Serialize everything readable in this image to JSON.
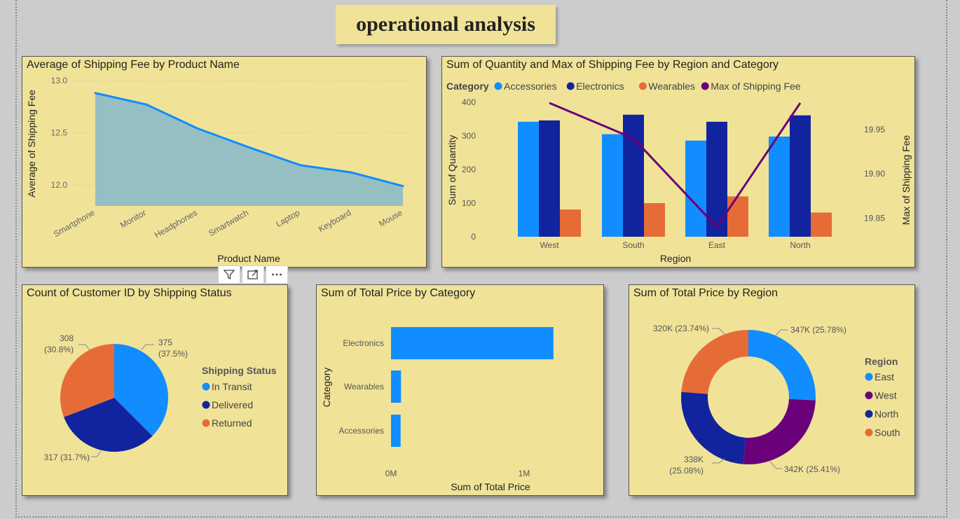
{
  "page": {
    "title": "operational analysis"
  },
  "toolbar": {
    "icons": [
      "filter-icon",
      "focus-mode-icon",
      "more-options-icon"
    ]
  },
  "colors": {
    "east": "#118dff",
    "west": "#6b007b",
    "north": "#12239e",
    "south": "#e66c37",
    "accessories": "#118dff",
    "electronics": "#12239e",
    "wearables": "#e66c37",
    "max_fee": "#6b007b",
    "area_fill": "#96bfc4",
    "area_line": "#118dff"
  },
  "chart_data": [
    {
      "type": "area",
      "title": "Average of Shipping Fee by Product Name",
      "xlabel": "Product Name",
      "ylabel": "Average of Shipping Fee",
      "categories": [
        "Smartphone",
        "Monitor",
        "Headphones",
        "Smartwatch",
        "Laptop",
        "Keyboard",
        "Mouse"
      ],
      "values": [
        12.88,
        12.77,
        12.54,
        12.36,
        12.19,
        12.12,
        11.99
      ],
      "ylim": [
        11.8,
        13.0
      ],
      "yticks": [
        "13.0",
        "12.5",
        "12.0"
      ],
      "ytick_values": [
        13.0,
        12.5,
        12.0
      ]
    },
    {
      "type": "bar",
      "title": "Sum of Quantity and Max of Shipping Fee by Region and Category",
      "xlabel": "Region",
      "ylabel": "Sum of Quantity",
      "y2label": "Max of Shipping Fee",
      "legend_title": "Category",
      "categories": [
        "West",
        "South",
        "East",
        "North"
      ],
      "series": [
        {
          "name": "Accessories",
          "values": [
            342,
            305,
            286,
            298
          ]
        },
        {
          "name": "Electronics",
          "values": [
            346,
            363,
            342,
            361
          ]
        },
        {
          "name": "Wearables",
          "values": [
            81,
            100,
            120,
            72
          ]
        }
      ],
      "line": {
        "name": "Max of Shipping Fee",
        "values": [
          19.98,
          19.94,
          19.84,
          19.98
        ]
      },
      "ylim": [
        0,
        400
      ],
      "yticks": [
        "400",
        "300",
        "200",
        "100",
        "0"
      ],
      "ytick_values": [
        400,
        300,
        200,
        100,
        0
      ],
      "y2lim": [
        19.84,
        19.98
      ],
      "y2ticks": [
        "19.95",
        "19.90",
        "19.85"
      ],
      "y2tick_values": [
        19.95,
        19.9,
        19.85
      ]
    },
    {
      "type": "pie",
      "title": "Count of Customer ID by Shipping Status",
      "legend_title": "Shipping Status",
      "slices": [
        {
          "name": "In Transit",
          "value": 375,
          "label_a": "375",
          "label_b": "(37.5%)"
        },
        {
          "name": "Delivered",
          "value": 317,
          "label_a": "317 (31.7%)",
          "label_b": ""
        },
        {
          "name": "Returned",
          "value": 308,
          "label_a": "308",
          "label_b": "(30.8%)"
        }
      ]
    },
    {
      "type": "bar",
      "orientation": "horizontal",
      "title": "Sum of Total Price by Category",
      "xlabel": "Sum of Total Price",
      "ylabel": "Category",
      "categories": [
        "Electronics",
        "Wearables",
        "Accessories"
      ],
      "values": [
        1220000,
        75000,
        72000
      ],
      "xlim": [
        0,
        1200000
      ],
      "xticks": [
        "0M",
        "1M"
      ],
      "xtick_values": [
        0,
        1000000
      ]
    },
    {
      "type": "pie",
      "donut": true,
      "title": "Sum of Total Price by Region",
      "legend_title": "Region",
      "legend": [
        "East",
        "West",
        "North",
        "South"
      ],
      "slices": [
        {
          "name": "East",
          "value": 347,
          "label_a": "347K (25.78%)",
          "label_b": ""
        },
        {
          "name": "West",
          "value": 342,
          "label_a": "342K (25.41%)",
          "label_b": ""
        },
        {
          "name": "North",
          "value": 338,
          "label_a": "338K",
          "label_b": "(25.08%)"
        },
        {
          "name": "South",
          "value": 320,
          "label_a": "320K (23.74%)",
          "label_b": ""
        }
      ]
    }
  ]
}
